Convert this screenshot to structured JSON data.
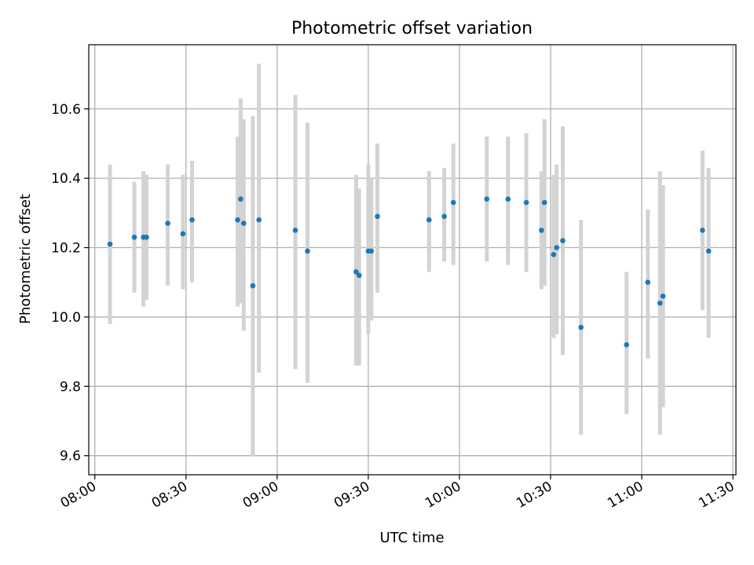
{
  "chart_data": {
    "type": "scatter",
    "title": "Photometric offset variation",
    "xlabel": "UTC time",
    "ylabel": "Photometric offset",
    "x_ticks": [
      "08:00",
      "08:30",
      "09:00",
      "09:30",
      "10:00",
      "10:30",
      "11:00",
      "11:30"
    ],
    "y_ticks": [
      "9.6",
      "9.8",
      "10.0",
      "10.2",
      "10.4",
      "10.6"
    ],
    "xlim": [
      "07:58",
      "11:31"
    ],
    "ylim": [
      9.545,
      10.785
    ],
    "grid": true,
    "colors": {
      "point": "#1f77b4",
      "errorbar": "#d3d3d3",
      "grid": "#b0b0b0"
    },
    "series": [
      {
        "points": [
          {
            "x": "08:05",
            "y": 10.21,
            "lo": 9.98,
            "hi": 10.44
          },
          {
            "x": "08:13",
            "y": 10.23,
            "lo": 10.07,
            "hi": 10.39
          },
          {
            "x": "08:16",
            "y": 10.23,
            "lo": 10.03,
            "hi": 10.42
          },
          {
            "x": "08:17",
            "y": 10.23,
            "lo": 10.05,
            "hi": 10.41
          },
          {
            "x": "08:24",
            "y": 10.27,
            "lo": 10.09,
            "hi": 10.44
          },
          {
            "x": "08:29",
            "y": 10.24,
            "lo": 10.08,
            "hi": 10.41
          },
          {
            "x": "08:32",
            "y": 10.28,
            "lo": 10.1,
            "hi": 10.45
          },
          {
            "x": "08:47",
            "y": 10.28,
            "lo": 10.03,
            "hi": 10.52
          },
          {
            "x": "08:48",
            "y": 10.34,
            "lo": 10.04,
            "hi": 10.63
          },
          {
            "x": "08:49",
            "y": 10.27,
            "lo": 9.96,
            "hi": 10.57
          },
          {
            "x": "08:52",
            "y": 10.09,
            "lo": 9.6,
            "hi": 10.58
          },
          {
            "x": "08:54",
            "y": 10.28,
            "lo": 9.84,
            "hi": 10.73
          },
          {
            "x": "09:06",
            "y": 10.25,
            "lo": 9.85,
            "hi": 10.64
          },
          {
            "x": "09:10",
            "y": 10.19,
            "lo": 9.81,
            "hi": 10.56
          },
          {
            "x": "09:26",
            "y": 10.13,
            "lo": 9.86,
            "hi": 10.41
          },
          {
            "x": "09:27",
            "y": 10.12,
            "lo": 9.86,
            "hi": 10.37
          },
          {
            "x": "09:30",
            "y": 10.19,
            "lo": 9.95,
            "hi": 10.44
          },
          {
            "x": "09:31",
            "y": 10.19,
            "lo": 9.99,
            "hi": 10.4
          },
          {
            "x": "09:33",
            "y": 10.29,
            "lo": 10.07,
            "hi": 10.5
          },
          {
            "x": "09:50",
            "y": 10.28,
            "lo": 10.13,
            "hi": 10.42
          },
          {
            "x": "09:55",
            "y": 10.29,
            "lo": 10.16,
            "hi": 10.43
          },
          {
            "x": "09:58",
            "y": 10.33,
            "lo": 10.15,
            "hi": 10.5
          },
          {
            "x": "10:09",
            "y": 10.34,
            "lo": 10.16,
            "hi": 10.52
          },
          {
            "x": "10:16",
            "y": 10.34,
            "lo": 10.15,
            "hi": 10.52
          },
          {
            "x": "10:22",
            "y": 10.33,
            "lo": 10.13,
            "hi": 10.53
          },
          {
            "x": "10:27",
            "y": 10.25,
            "lo": 10.08,
            "hi": 10.42
          },
          {
            "x": "10:28",
            "y": 10.33,
            "lo": 10.09,
            "hi": 10.57
          },
          {
            "x": "10:31",
            "y": 10.18,
            "lo": 9.94,
            "hi": 10.41
          },
          {
            "x": "10:32",
            "y": 10.2,
            "lo": 9.95,
            "hi": 10.44
          },
          {
            "x": "10:34",
            "y": 10.22,
            "lo": 9.89,
            "hi": 10.55
          },
          {
            "x": "10:40",
            "y": 9.97,
            "lo": 9.66,
            "hi": 10.28
          },
          {
            "x": "10:55",
            "y": 9.92,
            "lo": 9.72,
            "hi": 10.13
          },
          {
            "x": "11:02",
            "y": 10.1,
            "lo": 9.88,
            "hi": 10.31
          },
          {
            "x": "11:06",
            "y": 10.04,
            "lo": 9.66,
            "hi": 10.42
          },
          {
            "x": "11:07",
            "y": 10.06,
            "lo": 9.74,
            "hi": 10.38
          },
          {
            "x": "11:20",
            "y": 10.25,
            "lo": 10.02,
            "hi": 10.48
          },
          {
            "x": "11:22",
            "y": 10.19,
            "lo": 9.94,
            "hi": 10.43
          }
        ]
      }
    ]
  }
}
